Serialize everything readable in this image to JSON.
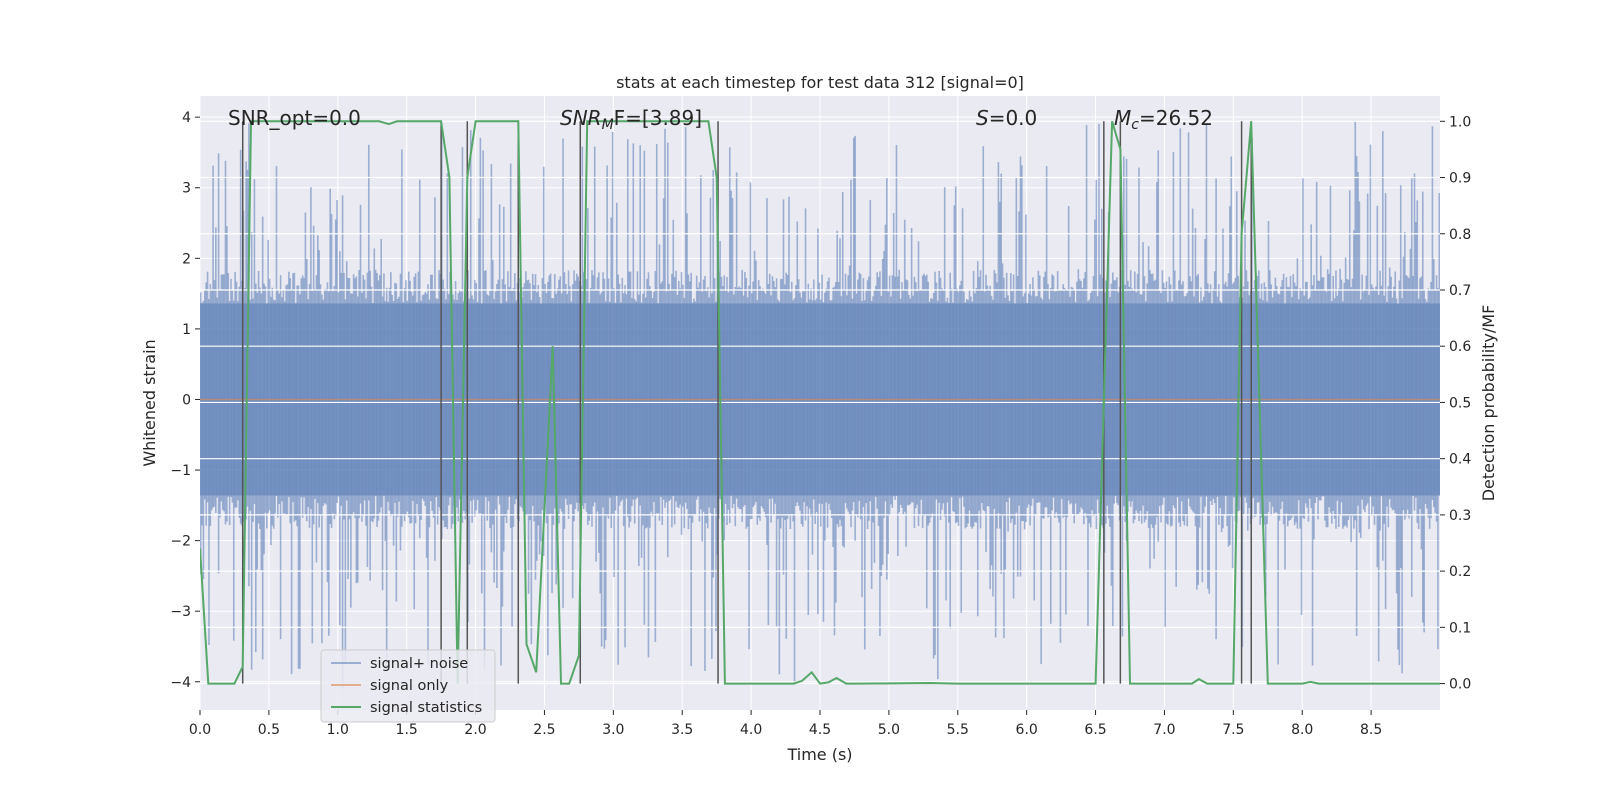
{
  "chart_data": {
    "type": "line",
    "title": "stats at each timestep for test data 312 [signal=0]",
    "xlabel": "Time (s)",
    "ylabel_left": "Whitened strain",
    "ylabel_right": "Detection probability/MF",
    "xlim": [
      0,
      9.0
    ],
    "ylim_left": [
      -4.4,
      4.3
    ],
    "ylim_right": [
      -0.047,
      1.045
    ],
    "x_ticks": [
      0.0,
      0.5,
      1.0,
      1.5,
      2.0,
      2.5,
      3.0,
      3.5,
      4.0,
      4.5,
      5.0,
      5.5,
      6.0,
      6.5,
      7.0,
      7.5,
      8.0,
      8.5
    ],
    "x_tick_labels": [
      "0.0",
      "0.5",
      "1.0",
      "1.5",
      "2.0",
      "2.5",
      "3.0",
      "3.5",
      "4.0",
      "4.5",
      "5.0",
      "5.5",
      "6.0",
      "6.5",
      "7.0",
      "7.5",
      "8.0",
      "8.5"
    ],
    "y_ticks_left": [
      4,
      3,
      2,
      1,
      0,
      -1,
      -2,
      -3,
      -4
    ],
    "y_tick_labels_left": [
      "4",
      "3",
      "2",
      "1",
      "0",
      "−1",
      "−2",
      "−3",
      "−4"
    ],
    "y_ticks_right": [
      1.0,
      0.9,
      0.8,
      0.7,
      0.6,
      0.5,
      0.4,
      0.3,
      0.2,
      0.1,
      0.0
    ],
    "y_tick_labels_right": [
      "1.0",
      "0.9",
      "0.8",
      "0.7",
      "0.6",
      "0.5",
      "0.4",
      "0.3",
      "0.2",
      "0.1",
      "0.0"
    ],
    "grid": true,
    "legend_position": "lower-left",
    "annotations": {
      "snr_opt": "SNR_opt=0.0",
      "snr_mf_base": "SNR",
      "snr_mf_sub": "M",
      "snr_mf_rest": "F=[3.89]",
      "s_label": "S",
      "s_value": "=0.0",
      "mc_label": "M",
      "mc_sub": "c",
      "mc_value": "=26.52"
    },
    "noise_envelope": {
      "typical_abs": 1.6,
      "peak_abs": 3.9,
      "sample_count": 900
    },
    "vertical_markers": [
      0.31,
      1.75,
      1.94,
      2.31,
      2.76,
      3.76,
      6.56,
      6.68,
      7.56,
      7.63
    ],
    "series": [
      {
        "name": "signal+ noise",
        "color": "#4c72b0",
        "kind": "strain_noise"
      },
      {
        "name": "signal only",
        "color": "#dd8452",
        "kind": "flat",
        "value": 0.0
      },
      {
        "name": "signal statistics",
        "color": "#55a868",
        "axis": "right",
        "x": [
          0.0,
          0.06,
          0.12,
          0.25,
          0.31,
          0.37,
          0.43,
          0.5,
          1.0,
          1.3,
          1.37,
          1.43,
          1.75,
          1.81,
          1.87,
          1.94,
          2.0,
          2.12,
          2.31,
          2.37,
          2.44,
          2.56,
          2.62,
          2.68,
          2.75,
          2.81,
          2.87,
          3.5,
          3.69,
          3.75,
          3.81,
          4.0,
          4.31,
          4.37,
          4.44,
          4.5,
          4.56,
          4.62,
          4.69,
          4.75,
          5.3,
          5.5,
          6.5,
          6.56,
          6.62,
          6.68,
          6.75,
          6.81,
          7.2,
          7.25,
          7.31,
          7.5,
          7.56,
          7.63,
          7.69,
          7.75,
          8.0,
          8.06,
          8.12,
          9.0
        ],
        "y": [
          0.24,
          0.0,
          0.0,
          0.0,
          0.03,
          1.0,
          1.0,
          1.0,
          1.0,
          1.0,
          0.995,
          1.0,
          1.0,
          0.9,
          0.0,
          0.9,
          1.0,
          1.0,
          1.0,
          0.07,
          0.02,
          0.6,
          0.0,
          0.0,
          0.05,
          1.0,
          1.0,
          1.0,
          1.0,
          0.9,
          0.0,
          0.0,
          0.0,
          0.005,
          0.02,
          0.0,
          0.002,
          0.01,
          0.0,
          0.0,
          0.001,
          0.0,
          0.0,
          0.5,
          1.0,
          0.95,
          0.0,
          0.0,
          0.0,
          0.008,
          0.0,
          0.0,
          0.8,
          1.0,
          0.5,
          0.0,
          0.0,
          0.003,
          0.0,
          0.0
        ]
      }
    ]
  }
}
